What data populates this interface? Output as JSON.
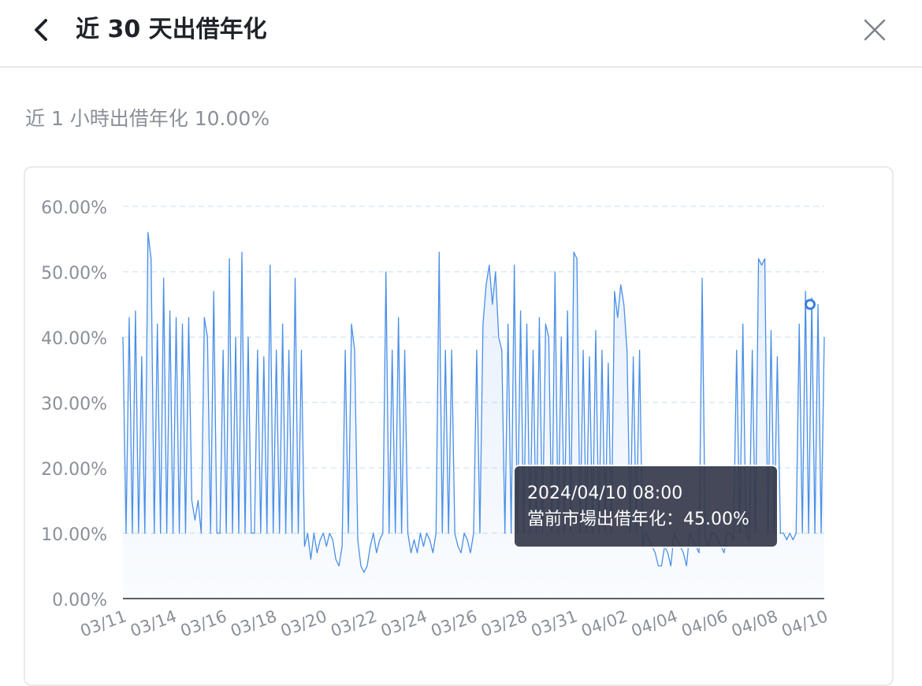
{
  "header": {
    "title": "近 30 天出借年化",
    "back_icon": "chevron-left-icon",
    "close_icon": "close-icon"
  },
  "summary": {
    "text": "近 1 小時出借年化 10.00%"
  },
  "tooltip": {
    "time": "2024/04/10 08:00",
    "label": "當前市場出借年化",
    "separator": "：",
    "value": "45.00%"
  },
  "colors": {
    "line": "#4a8fe7",
    "grid": "#dce8f4",
    "axis_text": "#8a8f99",
    "tooltip_bg": "#34384a"
  },
  "chart_data": {
    "type": "area",
    "title": "",
    "xlabel": "",
    "ylabel": "",
    "ylim": [
      0,
      60
    ],
    "yticks": [
      "0.00%",
      "10.00%",
      "20.00%",
      "30.00%",
      "40.00%",
      "50.00%",
      "60.00%"
    ],
    "xticks": [
      "03/11",
      "03/14",
      "03/16",
      "03/18",
      "03/20",
      "03/22",
      "03/24",
      "03/26",
      "03/28",
      "03/31",
      "04/02",
      "04/04",
      "04/06",
      "04/08",
      "04/10"
    ],
    "grid": true,
    "legend": "none",
    "highlight": {
      "x": "2024/04/10 08:00",
      "y": 45
    },
    "series": [
      {
        "x_start": "2024/03/11 00:00",
        "x_end": "2024/04/10 08:00",
        "values": [
          40,
          10,
          43,
          10,
          44,
          10,
          37,
          10,
          56,
          52,
          10,
          42,
          10,
          49,
          10,
          44,
          10,
          43,
          10,
          42,
          10,
          43,
          15,
          12,
          15,
          10,
          43,
          40,
          10,
          47,
          10,
          10,
          38,
          10,
          52,
          10,
          40,
          10,
          53,
          10,
          40,
          10,
          10,
          38,
          10,
          37,
          10,
          51,
          10,
          38,
          10,
          42,
          10,
          38,
          10,
          49,
          10,
          38,
          8,
          10,
          6,
          10,
          7,
          9,
          10,
          8,
          10,
          9,
          6,
          5,
          8,
          38,
          10,
          42,
          38,
          9,
          5,
          4,
          5,
          8,
          10,
          7,
          9,
          10,
          50,
          10,
          38,
          10,
          43,
          10,
          38,
          10,
          7,
          9,
          7,
          10,
          8,
          10,
          9,
          7,
          10,
          53,
          10,
          38,
          10,
          38,
          10,
          8,
          7,
          10,
          9,
          7,
          10,
          38,
          10,
          42,
          48,
          51,
          45,
          50,
          40,
          38,
          10,
          42,
          10,
          51,
          10,
          44,
          10,
          42,
          10,
          38,
          10,
          43,
          10,
          42,
          40,
          10,
          50,
          10,
          40,
          10,
          44,
          10,
          53,
          52,
          10,
          38,
          10,
          37,
          10,
          41,
          10,
          38,
          10,
          36,
          10,
          47,
          43,
          48,
          45,
          38,
          10,
          37,
          10,
          38,
          8,
          10,
          9,
          8,
          7,
          5,
          5,
          8,
          7,
          5,
          10,
          9,
          8,
          7,
          5,
          10,
          9,
          8,
          7,
          49,
          9,
          8,
          10,
          10,
          9,
          8,
          7,
          10,
          10,
          9,
          38,
          10,
          42,
          10,
          9,
          38,
          10,
          52,
          51,
          52,
          10,
          41,
          10,
          37,
          10,
          10,
          9,
          10,
          9,
          10,
          42,
          10,
          47,
          10,
          46,
          10,
          45,
          10,
          40
        ]
      }
    ]
  }
}
